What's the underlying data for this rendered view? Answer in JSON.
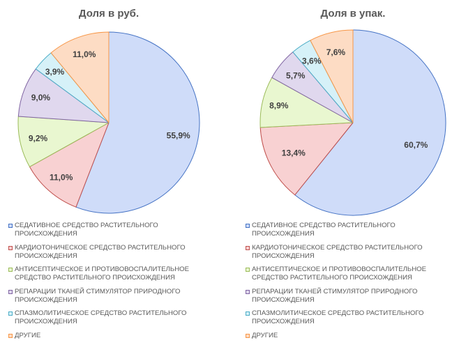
{
  "chart_data": [
    {
      "type": "pie",
      "title": "Доля в руб.",
      "categories": [
        "СЕДАТИВНОЕ СРЕДСТВО РАСТИТЕЛЬНОГО ПРОИСХОЖДЕНИЯ",
        "КАРДИОТОНИЧЕСКОЕ СРЕДСТВО РАСТИТЕЛЬНОГО ПРОИСХОЖДЕНИЯ",
        "АНТИСЕПТИЧЕСКОЕ И ПРОТИВОВОСПАЛИТЕЛЬНОЕ СРЕДСТВО РАСТИТЕЛЬНОГО ПРОИСХОЖДЕНИЯ",
        "РЕПАРАЦИИ ТКАНЕЙ СТИМУЛЯТОР ПРИРОДНОГО ПРОИСХОЖДЕНИЯ",
        "СПАЗМОЛИТИЧЕСКОЕ СРЕДСТВО РАСТИТЕЛЬНОГО ПРОИСХОЖДЕНИЯ",
        "ДРУГИЕ"
      ],
      "values": [
        55.9,
        11.0,
        9.2,
        9.0,
        3.9,
        11.0
      ],
      "labels": [
        "55,9%",
        "11,0%",
        "9,2%",
        "9,0%",
        "3,9%",
        "11,0%"
      ],
      "legend_position": "bottom"
    },
    {
      "type": "pie",
      "title": "Доля в упак.",
      "categories": [
        "СЕДАТИВНОЕ СРЕДСТВО РАСТИТЕЛЬНОГО ПРОИСХОЖДЕНИЯ",
        "КАРДИОТОНИЧЕСКОЕ СРЕДСТВО РАСТИТЕЛЬНОГО ПРОИСХОЖДЕНИЯ",
        "АНТИСЕПТИЧЕСКОЕ И ПРОТИВОВОСПАЛИТЕЛЬНОЕ СРЕДСТВО РАСТИТЕЛЬНОГО ПРОИСХОЖДЕНИЯ",
        "РЕПАРАЦИИ ТКАНЕЙ СТИМУЛЯТОР ПРИРОДНОГО ПРОИСХОЖДЕНИЯ",
        "СПАЗМОЛИТИЧЕСКОЕ СРЕДСТВО РАСТИТЕЛЬНОГО ПРОИСХОЖДЕНИЯ",
        "ДРУГИЕ"
      ],
      "values": [
        60.7,
        13.4,
        8.9,
        5.7,
        3.6,
        7.6
      ],
      "labels": [
        "60,7%",
        "13,4%",
        "8,9%",
        "5,7%",
        "3,6%",
        "7,6%"
      ],
      "legend_position": "bottom"
    }
  ],
  "colors": {
    "fills": [
      "#cfdcf9",
      "#f8d1d2",
      "#e9f7d0",
      "#e0d8ee",
      "#d6f1f8",
      "#fddcc4"
    ],
    "strokes": [
      "#4472c4",
      "#c0504d",
      "#9bbb59",
      "#8064a2",
      "#4bacc6",
      "#f79646"
    ]
  },
  "legend": {
    "items": [
      "СЕДАТИВНОЕ СРЕДСТВО РАСТИТЕЛЬНОГО ПРОИСХОЖДЕНИЯ",
      "КАРДИОТОНИЧЕСКОЕ СРЕДСТВО РАСТИТЕЛЬНОГО ПРОИСХОЖДЕНИЯ",
      "АНТИСЕПТИЧЕСКОЕ И ПРОТИВОВОСПАЛИТЕЛЬНОЕ СРЕДСТВО РАСТИТЕЛЬНОГО ПРОИСХОЖДЕНИЯ",
      "РЕПАРАЦИИ ТКАНЕЙ СТИМУЛЯТОР ПРИРОДНОГО ПРОИСХОЖДЕНИЯ",
      "СПАЗМОЛИТИЧЕСКОЕ СРЕДСТВО РАСТИТЕЛЬНОГО ПРОИСХОЖДЕНИЯ",
      "ДРУГИЕ"
    ]
  }
}
